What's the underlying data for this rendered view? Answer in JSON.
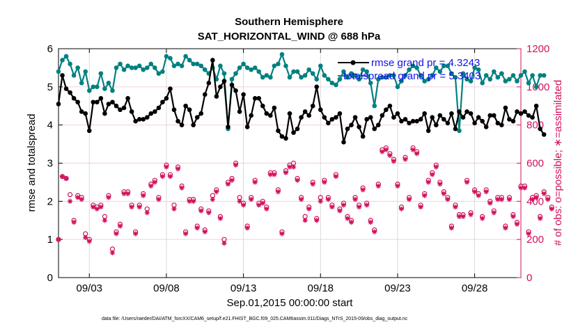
{
  "chart_data": {
    "type": "line",
    "title": [
      "Southern Hemisphere",
      "SAT_HORIZONTAL_WIND @ 688 hPa"
    ],
    "xlabel": "Sep.01,2015 00:00:00 start",
    "ylabel_left": "rmse and totalspread",
    "ylabel_right": "# of obs: o=possible; ∗=assimilated",
    "footer": "data file: /Users/raeder/DAI/ATM_forcXX/CAM6_setup/f.e21.FHIST_BGC.f09_025.CAM6assim.011/Diags_NTrS_2015-09/obs_diag_output.nc",
    "xlim": [
      0.5,
      30.5
    ],
    "ylim_left": [
      0,
      6
    ],
    "ylim_right": [
      0,
      1200
    ],
    "x_tick_values": [
      2.5,
      7.5,
      12.5,
      17.5,
      22.5,
      27.5
    ],
    "x_tick_labels": [
      "09/03",
      "09/08",
      "09/13",
      "09/18",
      "09/23",
      "09/28"
    ],
    "y_left_ticks": [
      "0",
      "1",
      "2",
      "3",
      "4",
      "5",
      "6"
    ],
    "y_right_ticks": [
      "0",
      "200",
      "400",
      "600",
      "800",
      "1000",
      "1200"
    ],
    "colors": {
      "rmse": "#000000",
      "spread": "#008080",
      "obs": "#d1105c",
      "legend_text": "#1010ee"
    },
    "legend": [
      "rmse grand pr = 4.3243",
      "totalspread grand pr = 5.3403"
    ],
    "x_start": 0.5,
    "x_step": 0.25,
    "rmse": [
      4.55,
      5.3,
      4.95,
      4.85,
      4.7,
      4.6,
      4.35,
      4.3,
      3.85,
      4.6,
      4.6,
      4.7,
      4.3,
      4.55,
      4.6,
      4.5,
      4.4,
      4.45,
      4.7,
      4.35,
      4.1,
      4.15,
      4.15,
      4.2,
      4.3,
      4.35,
      4.45,
      4.6,
      4.7,
      4.95,
      4.4,
      4.1,
      4.0,
      4.5,
      4.4,
      4.0,
      4.2,
      4.3,
      4.8,
      5.1,
      5.7,
      4.75,
      5.0,
      5.15,
      3.95,
      5.05,
      4.9,
      4.35,
      4.8,
      3.95,
      4.25,
      4.7,
      4.7,
      4.5,
      4.3,
      4.25,
      4.45,
      3.85,
      3.7,
      3.65,
      4.3,
      3.8,
      3.9,
      4.2,
      4.35,
      4.25,
      4.5,
      5.0,
      4.4,
      4.2,
      4.05,
      4.15,
      4.2,
      4.3,
      3.55,
      3.9,
      4.0,
      4.2,
      3.95,
      3.7,
      4.15,
      4.2,
      3.9,
      4.0,
      4.25,
      4.4,
      4.5,
      4.2,
      4.3,
      4.1,
      4.15,
      4.05,
      4.1,
      4.1,
      4.15,
      4.3,
      3.85,
      4.2,
      4.0,
      4.25,
      4.15,
      4.05,
      4.3,
      3.9,
      4.35,
      4.2,
      4.35,
      4.3,
      4.05,
      4.2,
      4.1,
      3.95,
      4.25,
      4.25,
      4.05,
      4.0,
      4.45,
      4.15,
      4.1,
      4.35,
      4.3,
      4.35,
      4.25,
      4.2,
      4.5,
      3.9,
      3.75
    ],
    "spread": [
      5.4,
      5.7,
      5.8,
      5.6,
      5.3,
      5.5,
      5.1,
      5.4,
      4.9,
      5.0,
      5.0,
      5.35,
      4.95,
      5.1,
      4.9,
      5.5,
      5.6,
      5.45,
      5.55,
      5.5,
      5.5,
      5.55,
      5.45,
      5.5,
      5.6,
      5.5,
      5.35,
      5.4,
      5.8,
      5.75,
      5.55,
      5.6,
      5.55,
      5.8,
      5.7,
      5.6,
      5.6,
      5.55,
      5.45,
      5.35,
      5.5,
      5.2,
      5.55,
      5.35,
      3.9,
      5.2,
      5.35,
      5.5,
      5.6,
      5.5,
      5.45,
      5.5,
      5.4,
      5.25,
      5.3,
      5.25,
      5.55,
      5.6,
      5.85,
      5.55,
      5.25,
      5.4,
      5.4,
      5.25,
      5.3,
      5.45,
      5.35,
      5.2,
      5.55,
      5.3,
      5.2,
      5.1,
      5.05,
      5.2,
      5.4,
      5.25,
      5.35,
      5.3,
      5.2,
      5.45,
      5.4,
      5.1,
      4.5,
      5.2,
      5.25,
      5.25,
      5.3,
      5.3,
      5.0,
      5.15,
      5.3,
      5.45,
      5.55,
      5.5,
      5.3,
      5.15,
      5.2,
      5.3,
      5.5,
      5.4,
      5.55,
      5.55,
      5.35,
      5.25,
      3.85,
      5.35,
      5.2,
      5.15,
      5.5,
      5.45,
      5.1,
      5.3,
      5.2,
      5.4,
      5.25,
      5.35,
      5.15,
      5.2,
      5.3,
      5.15,
      5.3,
      5.4,
      5.1,
      5.3,
      5.0,
      5.3,
      5.3
    ],
    "obs_possible": [
      200,
      530,
      520,
      435,
      300,
      430,
      420,
      230,
      200,
      380,
      370,
      380,
      320,
      430,
      150,
      240,
      280,
      450,
      450,
      380,
      240,
      380,
      440,
      360,
      490,
      510,
      420,
      540,
      590,
      540,
      380,
      580,
      480,
      240,
      410,
      410,
      270,
      360,
      250,
      350,
      430,
      460,
      320,
      200,
      500,
      520,
      600,
      420,
      390,
      270,
      420,
      510,
      390,
      400,
      370,
      550,
      550,
      460,
      240,
      560,
      590,
      600,
      520,
      420,
      320,
      370,
      500,
      310,
      420,
      510,
      420,
      380,
      540,
      360,
      390,
      320,
      300,
      420,
      380,
      470,
      390,
      300,
      250,
      490,
      670,
      680,
      650,
      620,
      490,
      370,
      630,
      420,
      680,
      660,
      380,
      440,
      510,
      550,
      590,
      500,
      450,
      420,
      270,
      380,
      330,
      330,
      510,
      340,
      460,
      440,
      320,
      460,
      400,
      350,
      420,
      420,
      270,
      420,
      330,
      290,
      480,
      480,
      240,
      420,
      430,
      320,
      450,
      420,
      370
    ],
    "obs_assimilated": [
      200,
      530,
      520,
      400,
      290,
      420,
      410,
      210,
      190,
      370,
      360,
      370,
      300,
      420,
      130,
      230,
      270,
      440,
      440,
      370,
      230,
      370,
      430,
      340,
      480,
      500,
      410,
      530,
      580,
      530,
      360,
      570,
      470,
      230,
      400,
      400,
      260,
      350,
      240,
      340,
      410,
      450,
      310,
      180,
      490,
      510,
      590,
      400,
      380,
      260,
      410,
      500,
      380,
      390,
      360,
      540,
      540,
      450,
      230,
      550,
      580,
      580,
      510,
      410,
      300,
      360,
      490,
      300,
      400,
      500,
      410,
      370,
      530,
      350,
      380,
      310,
      290,
      410,
      370,
      460,
      380,
      290,
      240,
      480,
      660,
      670,
      640,
      610,
      480,
      360,
      620,
      410,
      670,
      650,
      370,
      430,
      500,
      540,
      580,
      490,
      440,
      410,
      260,
      370,
      320,
      320,
      500,
      330,
      450,
      430,
      310,
      450,
      390,
      340,
      410,
      410,
      260,
      410,
      320,
      280,
      470,
      470,
      230,
      410,
      420,
      310,
      440,
      410,
      360
    ]
  }
}
